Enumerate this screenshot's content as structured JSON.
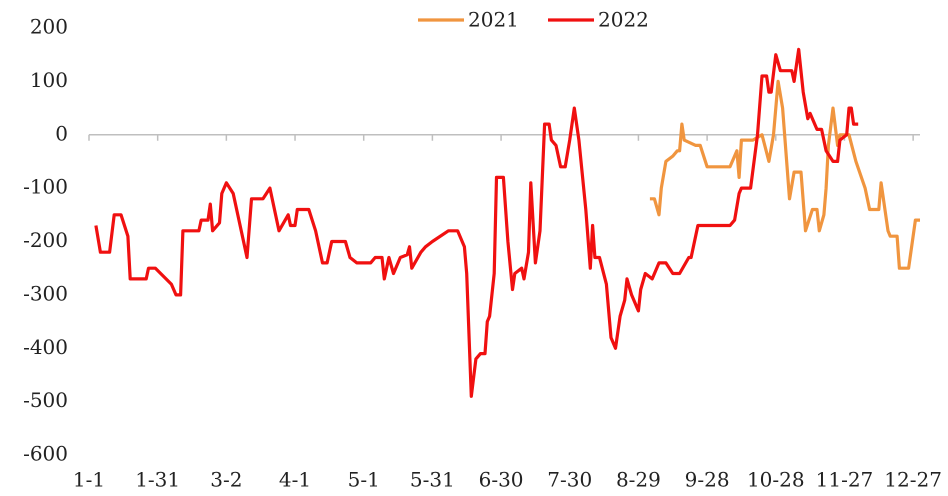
{
  "chart_data": {
    "type": "line",
    "xlim": [
      "1-1",
      "12-30"
    ],
    "xticks": [
      "1-1",
      "1-31",
      "3-2",
      "4-1",
      "5-1",
      "5-31",
      "6-30",
      "7-30",
      "8-29",
      "9-28",
      "10-28",
      "11-27",
      "12-27"
    ],
    "ylim": [
      -600,
      200
    ],
    "yticks": [
      -600,
      -500,
      -400,
      -300,
      -200,
      -100,
      0,
      100,
      200
    ],
    "legend": "top",
    "series": [
      {
        "name": "2021",
        "color": "#f0953f",
        "x": [
          "9-3",
          "9-5",
          "9-7",
          "9-8",
          "9-10",
          "9-13",
          "9-15",
          "9-16",
          "9-17",
          "9-18",
          "9-23",
          "9-25",
          "9-28",
          "10-8",
          "10-11",
          "10-12",
          "10-13",
          "10-18",
          "10-22",
          "10-25",
          "10-27",
          "10-29",
          "10-31",
          "11-3",
          "11-5",
          "11-8",
          "11-10",
          "11-13",
          "11-15",
          "11-16",
          "11-18",
          "11-19",
          "11-20",
          "11-22",
          "11-24",
          "11-25",
          "11-29",
          "12-2",
          "12-6",
          "12-8",
          "12-12",
          "12-13",
          "12-16",
          "12-17",
          "12-20",
          "12-21",
          "12-25",
          "12-28",
          "12-30"
        ],
        "values": [
          -120,
          -120,
          -150,
          -100,
          -50,
          -40,
          -30,
          -30,
          20,
          -10,
          -20,
          -20,
          -60,
          -60,
          -30,
          -80,
          -10,
          -10,
          0,
          -50,
          0,
          100,
          50,
          -120,
          -70,
          -70,
          -180,
          -140,
          -140,
          -180,
          -150,
          -100,
          -20,
          50,
          -20,
          0,
          0,
          -50,
          -100,
          -140,
          -140,
          -90,
          -180,
          -190,
          -190,
          -250,
          -250,
          -160,
          -160
        ]
      },
      {
        "name": "2022",
        "color": "#f01010",
        "x": [
          "1-4",
          "1-6",
          "1-10",
          "1-12",
          "1-15",
          "1-18",
          "1-19",
          "1-26",
          "1-27",
          "1-30",
          "2-6",
          "2-8",
          "2-10",
          "2-11",
          "2-18",
          "2-19",
          "2-22",
          "2-23",
          "2-24",
          "2-27",
          "2-28",
          "3-2",
          "3-5",
          "3-7",
          "3-11",
          "3-13",
          "3-18",
          "3-21",
          "3-25",
          "3-29",
          "3-30",
          "4-1",
          "4-2",
          "4-7",
          "4-10",
          "4-13",
          "4-15",
          "4-17",
          "4-23",
          "4-25",
          "4-28",
          "5-4",
          "5-6",
          "5-9",
          "5-10",
          "5-12",
          "5-14",
          "5-17",
          "5-20",
          "5-21",
          "5-22",
          "5-26",
          "5-28",
          "5-31",
          "6-7",
          "6-11",
          "6-14",
          "6-15",
          "6-17",
          "6-19",
          "6-21",
          "6-23",
          "6-24",
          "6-25",
          "6-27",
          "6-28",
          "7-1",
          "7-3",
          "7-5",
          "7-6",
          "7-9",
          "7-10",
          "7-12",
          "7-13",
          "7-15",
          "7-17",
          "7-19",
          "7-21",
          "7-22",
          "7-24",
          "7-26",
          "7-28",
          "7-30",
          "8-1",
          "8-3",
          "8-6",
          "8-8",
          "8-9",
          "8-10",
          "8-12",
          "8-15",
          "8-17",
          "8-19",
          "8-21",
          "8-23",
          "8-24",
          "8-26",
          "8-29",
          "8-30",
          "9-1",
          "9-4",
          "9-7",
          "9-10",
          "9-13",
          "9-16",
          "9-20",
          "9-21",
          "9-24",
          "10-8",
          "10-10",
          "10-12",
          "10-13",
          "10-17",
          "10-20",
          "10-22",
          "10-24",
          "10-25",
          "10-26",
          "10-28",
          "10-30",
          "11-4",
          "11-5",
          "11-7",
          "11-9",
          "11-11",
          "11-12",
          "11-15",
          "11-17",
          "11-19",
          "11-22",
          "11-24",
          "11-25",
          "11-28",
          "11-29",
          "11-30",
          "12-1",
          "12-3"
        ],
        "values": [
          -170,
          -220,
          -220,
          -150,
          -150,
          -190,
          -270,
          -270,
          -250,
          -250,
          -280,
          -300,
          -300,
          -180,
          -180,
          -160,
          -160,
          -130,
          -180,
          -165,
          -110,
          -90,
          -110,
          -150,
          -230,
          -120,
          -120,
          -100,
          -180,
          -150,
          -170,
          -170,
          -140,
          -140,
          -180,
          -240,
          -240,
          -200,
          -200,
          -230,
          -240,
          -240,
          -230,
          -230,
          -270,
          -230,
          -260,
          -230,
          -225,
          -210,
          -250,
          -220,
          -210,
          -200,
          -180,
          -180,
          -210,
          -260,
          -490,
          -420,
          -410,
          -410,
          -350,
          -340,
          -260,
          -80,
          -80,
          -200,
          -290,
          -260,
          -250,
          -270,
          -220,
          -90,
          -240,
          -180,
          20,
          20,
          -10,
          -20,
          -60,
          -60,
          -10,
          50,
          -10,
          -140,
          -250,
          -170,
          -230,
          -230,
          -280,
          -380,
          -400,
          -340,
          -310,
          -270,
          -300,
          -330,
          -290,
          -260,
          -270,
          -240,
          -240,
          -260,
          -260,
          -230,
          -230,
          -170,
          -170,
          -160,
          -110,
          -100,
          -100,
          0,
          110,
          110,
          80,
          80,
          150,
          120,
          120,
          100,
          160,
          80,
          30,
          40,
          10,
          10,
          -30,
          -50,
          -50,
          -10,
          0,
          50,
          50,
          20,
          20
        ]
      }
    ]
  }
}
